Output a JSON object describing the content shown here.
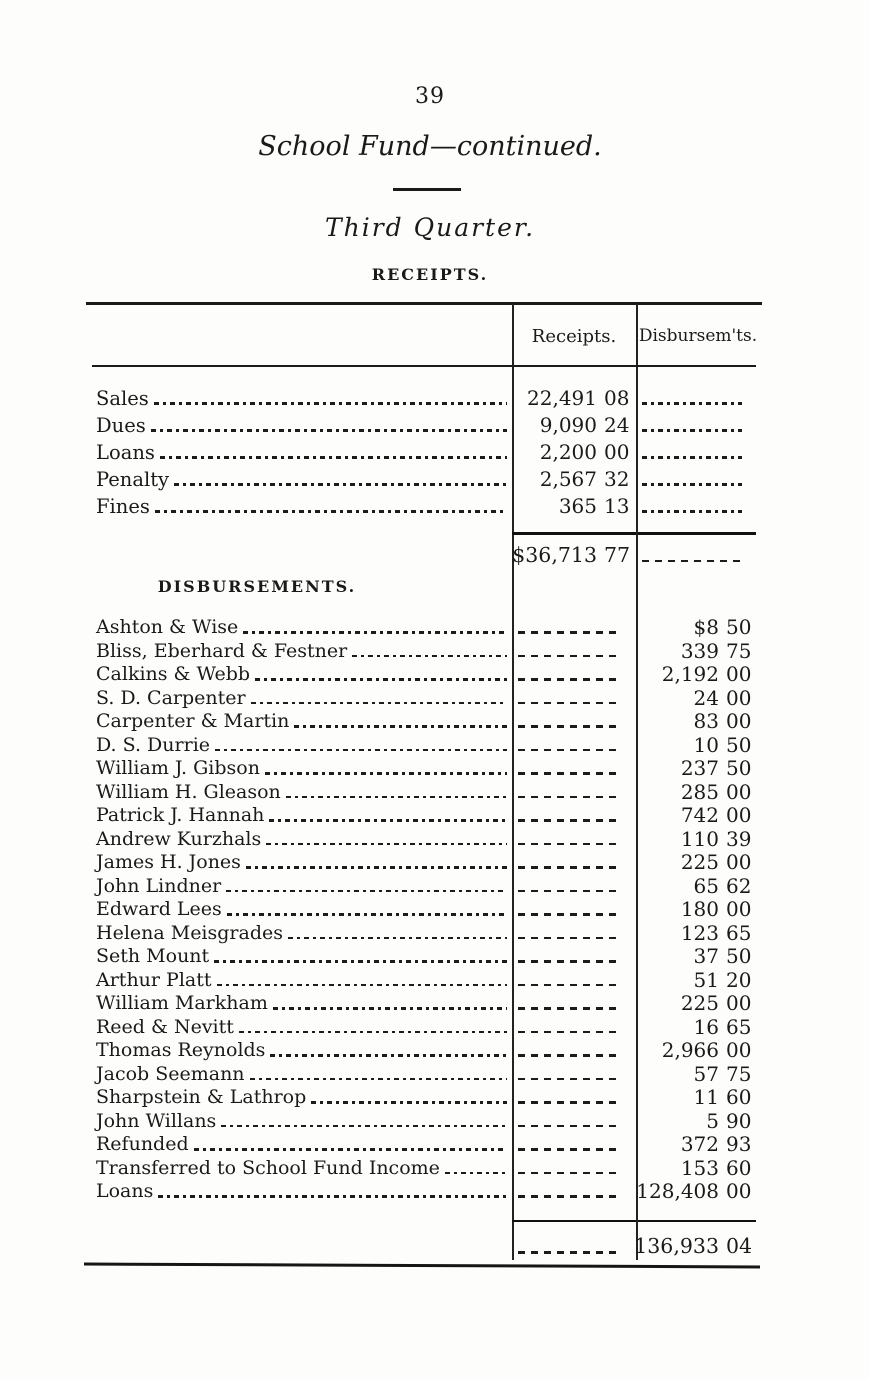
{
  "colors": {
    "ink": "#1a1a1a",
    "paper": "#fdfdfb"
  },
  "page": {
    "page_number": "39",
    "title": "School Fund—continued.",
    "subtitle": "Third Quarter.",
    "receipts_heading": "RECEIPTS.",
    "disbursements_heading": "DISBURSEMENTS."
  },
  "table": {
    "column_headers": {
      "receipts": "Receipts.",
      "disbursements": "Disbursem'ts."
    },
    "receipts_rows": [
      {
        "label": "Sales",
        "dollars": "22,491",
        "cents": "08"
      },
      {
        "label": "Dues",
        "dollars": "9,090",
        "cents": "24"
      },
      {
        "label": "Loans",
        "dollars": "2,200",
        "cents": "00"
      },
      {
        "label": "Penalty",
        "dollars": "2,567",
        "cents": "32"
      },
      {
        "label": "Fines",
        "dollars": "365",
        "cents": "13"
      }
    ],
    "receipts_total": {
      "dollars": "$36,713",
      "cents": "77"
    },
    "disbursement_rows": [
      {
        "label": "Ashton & Wise",
        "dollars": "$8",
        "cents": "50"
      },
      {
        "label": "Bliss, Eberhard & Festner",
        "dollars": "339",
        "cents": "75"
      },
      {
        "label": "Calkins & Webb",
        "dollars": "2,192",
        "cents": "00"
      },
      {
        "label": "S. D. Carpenter",
        "dollars": "24",
        "cents": "00"
      },
      {
        "label": "Carpenter & Martin",
        "dollars": "83",
        "cents": "00"
      },
      {
        "label": "D. S. Durrie",
        "dollars": "10",
        "cents": "50"
      },
      {
        "label": "William J. Gibson",
        "dollars": "237",
        "cents": "50"
      },
      {
        "label": "William H. Gleason",
        "dollars": "285",
        "cents": "00"
      },
      {
        "label": "Patrick J. Hannah",
        "dollars": "742",
        "cents": "00"
      },
      {
        "label": "Andrew Kurzhals",
        "dollars": "110",
        "cents": "39"
      },
      {
        "label": "James H. Jones",
        "dollars": "225",
        "cents": "00"
      },
      {
        "label": "John Lindner",
        "dollars": "65",
        "cents": "62"
      },
      {
        "label": "Edward Lees",
        "dollars": "180",
        "cents": "00"
      },
      {
        "label": "Helena Meisgrades",
        "dollars": "123",
        "cents": "65"
      },
      {
        "label": "Seth Mount",
        "dollars": "37",
        "cents": "50"
      },
      {
        "label": "Arthur Platt",
        "dollars": "51",
        "cents": "20"
      },
      {
        "label": "William Markham",
        "dollars": "225",
        "cents": "00"
      },
      {
        "label": "Reed & Nevitt",
        "dollars": "16",
        "cents": "65"
      },
      {
        "label": "Thomas Reynolds",
        "dollars": "2,966",
        "cents": "00"
      },
      {
        "label": "Jacob Seemann",
        "dollars": "57",
        "cents": "75"
      },
      {
        "label": "Sharpstein & Lathrop",
        "dollars": "11",
        "cents": "60"
      },
      {
        "label": "John Willans",
        "dollars": "5",
        "cents": "90"
      },
      {
        "label": "Refunded",
        "dollars": "372",
        "cents": "93"
      },
      {
        "label": "Transferred to School Fund Income",
        "dollars": "153",
        "cents": "60"
      },
      {
        "label": "Loans",
        "dollars": "128,408",
        "cents": "00"
      }
    ],
    "disbursements_total": {
      "dollars": "136,933",
      "cents": "04"
    }
  }
}
